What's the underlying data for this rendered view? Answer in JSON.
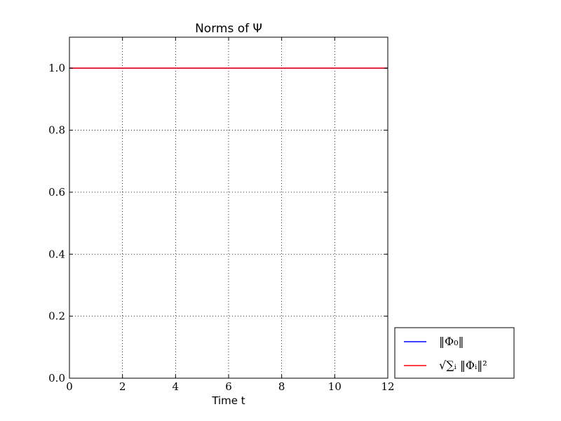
{
  "chart_data": {
    "type": "line",
    "title": "Norms of Ψ",
    "xlabel": "Time t",
    "ylabel": "",
    "xlim": [
      0,
      12
    ],
    "ylim": [
      0,
      1.1
    ],
    "xticks": [
      0,
      2,
      4,
      6,
      8,
      10,
      12
    ],
    "yticks": [
      0.0,
      0.2,
      0.4,
      0.6,
      0.8,
      1.0
    ],
    "ytick_labels": [
      "0.0",
      "0.2",
      "0.4",
      "0.6",
      "0.8",
      "1.0"
    ],
    "grid": true,
    "legend_position": "outside-lower-right",
    "series": [
      {
        "name": "‖Φ₀‖",
        "color": "#0000ff",
        "x": [
          0,
          12
        ],
        "y": [
          1.0,
          1.0
        ]
      },
      {
        "name": "√∑ᵢ ‖Φᵢ‖²",
        "color": "#ff0000",
        "x": [
          0,
          12
        ],
        "y": [
          1.0,
          1.0
        ]
      }
    ]
  }
}
